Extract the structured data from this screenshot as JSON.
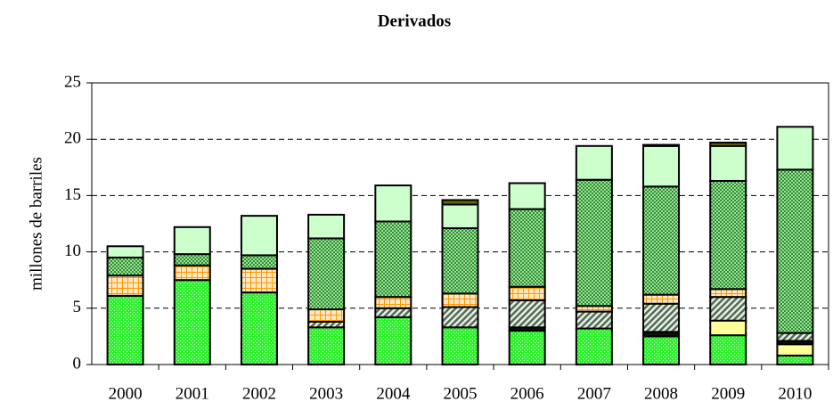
{
  "chart_data": {
    "type": "bar",
    "stacked": true,
    "title": "Derivados",
    "y_label": "millones de barriles",
    "categories": [
      "2000",
      "2001",
      "2002",
      "2003",
      "2004",
      "2005",
      "2006",
      "2007",
      "2008",
      "2009",
      "2010"
    ],
    "series": [
      {
        "color": "#33ee33",
        "pattern": "dots",
        "values": [
          6.1,
          7.5,
          6.4,
          3.3,
          4.2,
          3.3,
          3.0,
          3.2,
          2.5,
          2.6,
          0.8
        ]
      },
      {
        "color": "#ffff99",
        "pattern": "solid",
        "values": [
          0,
          0,
          0,
          0,
          0,
          0,
          0,
          0,
          0,
          1.3,
          1.0
        ]
      },
      {
        "color": "#111111",
        "pattern": "solid",
        "values": [
          0,
          0,
          0,
          0,
          0,
          0,
          0.3,
          0,
          0.4,
          0,
          0.3
        ]
      },
      {
        "color": "#556b55",
        "pattern": "hatch",
        "values": [
          0,
          0,
          0,
          0.5,
          0.8,
          1.8,
          2.4,
          1.5,
          2.5,
          2.1,
          0.7
        ]
      },
      {
        "color": "#ff9900",
        "pattern": "grid",
        "values": [
          1.8,
          1.3,
          2.1,
          1.1,
          1.0,
          1.2,
          1.2,
          0.5,
          0.8,
          0.7,
          0
        ]
      },
      {
        "color": "#33aa33",
        "pattern": "checker",
        "values": [
          1.6,
          1.0,
          1.2,
          6.3,
          6.7,
          5.8,
          6.9,
          11.2,
          9.6,
          9.6,
          14.5
        ]
      },
      {
        "color": "#ccffcc",
        "pattern": "solid",
        "values": [
          1.0,
          2.4,
          3.5,
          2.1,
          3.2,
          2.1,
          2.3,
          3.0,
          3.6,
          3.1,
          3.8
        ]
      },
      {
        "color": "#666600",
        "pattern": "solid",
        "values": [
          0,
          0,
          0,
          0,
          0,
          0.4,
          0,
          0,
          0.1,
          0.3,
          0
        ]
      }
    ],
    "ylim": [
      0,
      25
    ],
    "yticks": [
      0,
      5,
      10,
      15,
      20,
      25
    ],
    "grid": true
  }
}
